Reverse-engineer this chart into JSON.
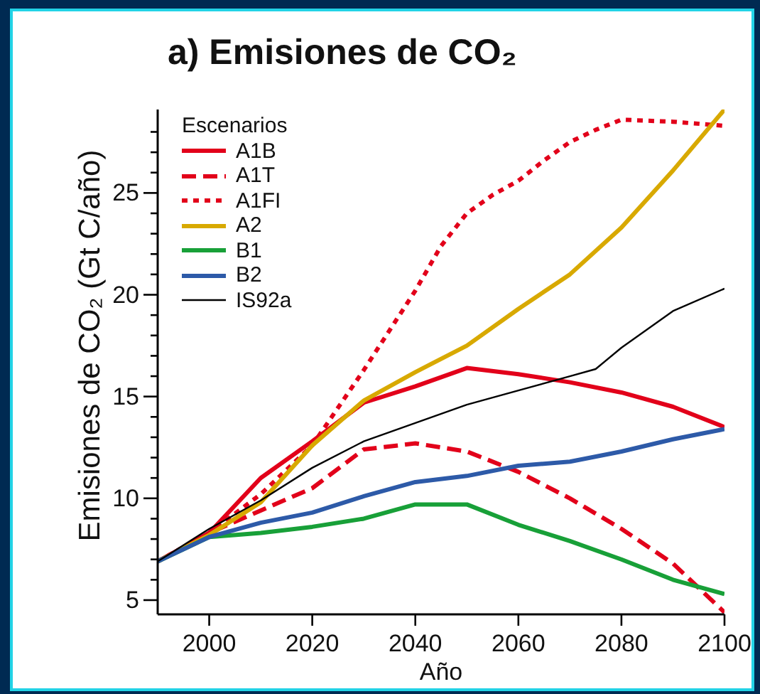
{
  "chart_data": {
    "type": "line",
    "title": "a) Emisiones de CO₂",
    "xlabel": "Año",
    "ylabel": "Emisiones de CO₂ (Gt C/año)",
    "legend_title": "Escenarios",
    "legend": "top left",
    "x": [
      1990,
      2000,
      2010,
      2020,
      2030,
      2040,
      2050,
      2060,
      2070,
      2080,
      2090,
      2100
    ],
    "xlim": [
      1990,
      2100
    ],
    "xticks": [
      2000,
      2020,
      2040,
      2060,
      2080,
      2100
    ],
    "ylim": [
      4.3,
      29.1
    ],
    "yticks": [
      5,
      {
        "value": 6,
        "label": null
      },
      {
        "value": 7,
        "label": null
      },
      {
        "value": 8,
        "label": null
      },
      {
        "value": 9,
        "label": null
      },
      10,
      {
        "value": 11,
        "label": null
      },
      {
        "value": 12,
        "label": null
      },
      {
        "value": 13,
        "label": null
      },
      {
        "value": 14,
        "label": null
      },
      15,
      {
        "value": 16,
        "label": null
      },
      {
        "value": 17,
        "label": null
      },
      {
        "value": 18,
        "label": null
      },
      {
        "value": 19,
        "label": null
      },
      20,
      {
        "value": 21,
        "label": null
      },
      {
        "value": 22,
        "label": null
      },
      {
        "value": 23,
        "label": null
      },
      {
        "value": 24,
        "label": null
      },
      25,
      {
        "value": 26,
        "label": null
      },
      {
        "value": 27,
        "label": null
      },
      {
        "value": 28,
        "label": null
      }
    ],
    "series": [
      {
        "name": "A1B",
        "color": "#e2001a",
        "line_style": "solid",
        "values": [
          6.9,
          8.3,
          11.0,
          12.8,
          14.7,
          15.5,
          16.4,
          16.1,
          15.7,
          15.2,
          14.5,
          13.5
        ]
      },
      {
        "name": "A1T",
        "color": "#e2001a",
        "line_style": "dashed",
        "values": [
          6.9,
          8.3,
          9.4,
          10.5,
          12.4,
          12.7,
          12.3,
          11.3,
          10.0,
          8.5,
          6.8,
          4.4
        ]
      },
      {
        "name": "A1FI",
        "color": "#e2001a",
        "line_style": "dotted",
        "x": [
          1990,
          2000,
          2010,
          2020,
          2030,
          2040,
          2045,
          2050,
          2055,
          2060,
          2065,
          2070,
          2075,
          2080,
          2090,
          2100
        ],
        "values": [
          6.9,
          8.3,
          10.2,
          12.6,
          16.3,
          20.2,
          22.4,
          24.0,
          24.9,
          25.6,
          26.6,
          27.5,
          28.1,
          28.6,
          28.5,
          28.3
        ]
      },
      {
        "name": "A2",
        "color": "#d8a900",
        "line_style": "solid",
        "values": [
          6.9,
          8.2,
          9.8,
          12.6,
          14.8,
          16.2,
          17.5,
          19.3,
          21.0,
          23.3,
          26.1,
          29.1
        ]
      },
      {
        "name": "B1",
        "color": "#18a038",
        "line_style": "solid",
        "values": [
          6.9,
          8.1,
          8.3,
          8.6,
          9.0,
          9.7,
          9.7,
          8.7,
          7.9,
          7.0,
          6.0,
          5.3
        ]
      },
      {
        "name": "B2",
        "color": "#2d5aa8",
        "line_style": "solid",
        "values": [
          6.9,
          8.1,
          8.8,
          9.3,
          10.1,
          10.8,
          11.1,
          11.6,
          11.8,
          12.3,
          12.9,
          13.4
        ]
      },
      {
        "name": "IS92a",
        "color": "#000000",
        "line_style": "solid",
        "x": [
          1990,
          2000,
          2010,
          2020,
          2030,
          2040,
          2050,
          2060,
          2070,
          2075,
          2080,
          2090,
          2100
        ],
        "values": [
          6.9,
          8.5,
          9.9,
          11.5,
          12.8,
          13.7,
          14.6,
          15.3,
          16.0,
          16.35,
          17.4,
          19.2,
          20.3
        ]
      }
    ]
  }
}
